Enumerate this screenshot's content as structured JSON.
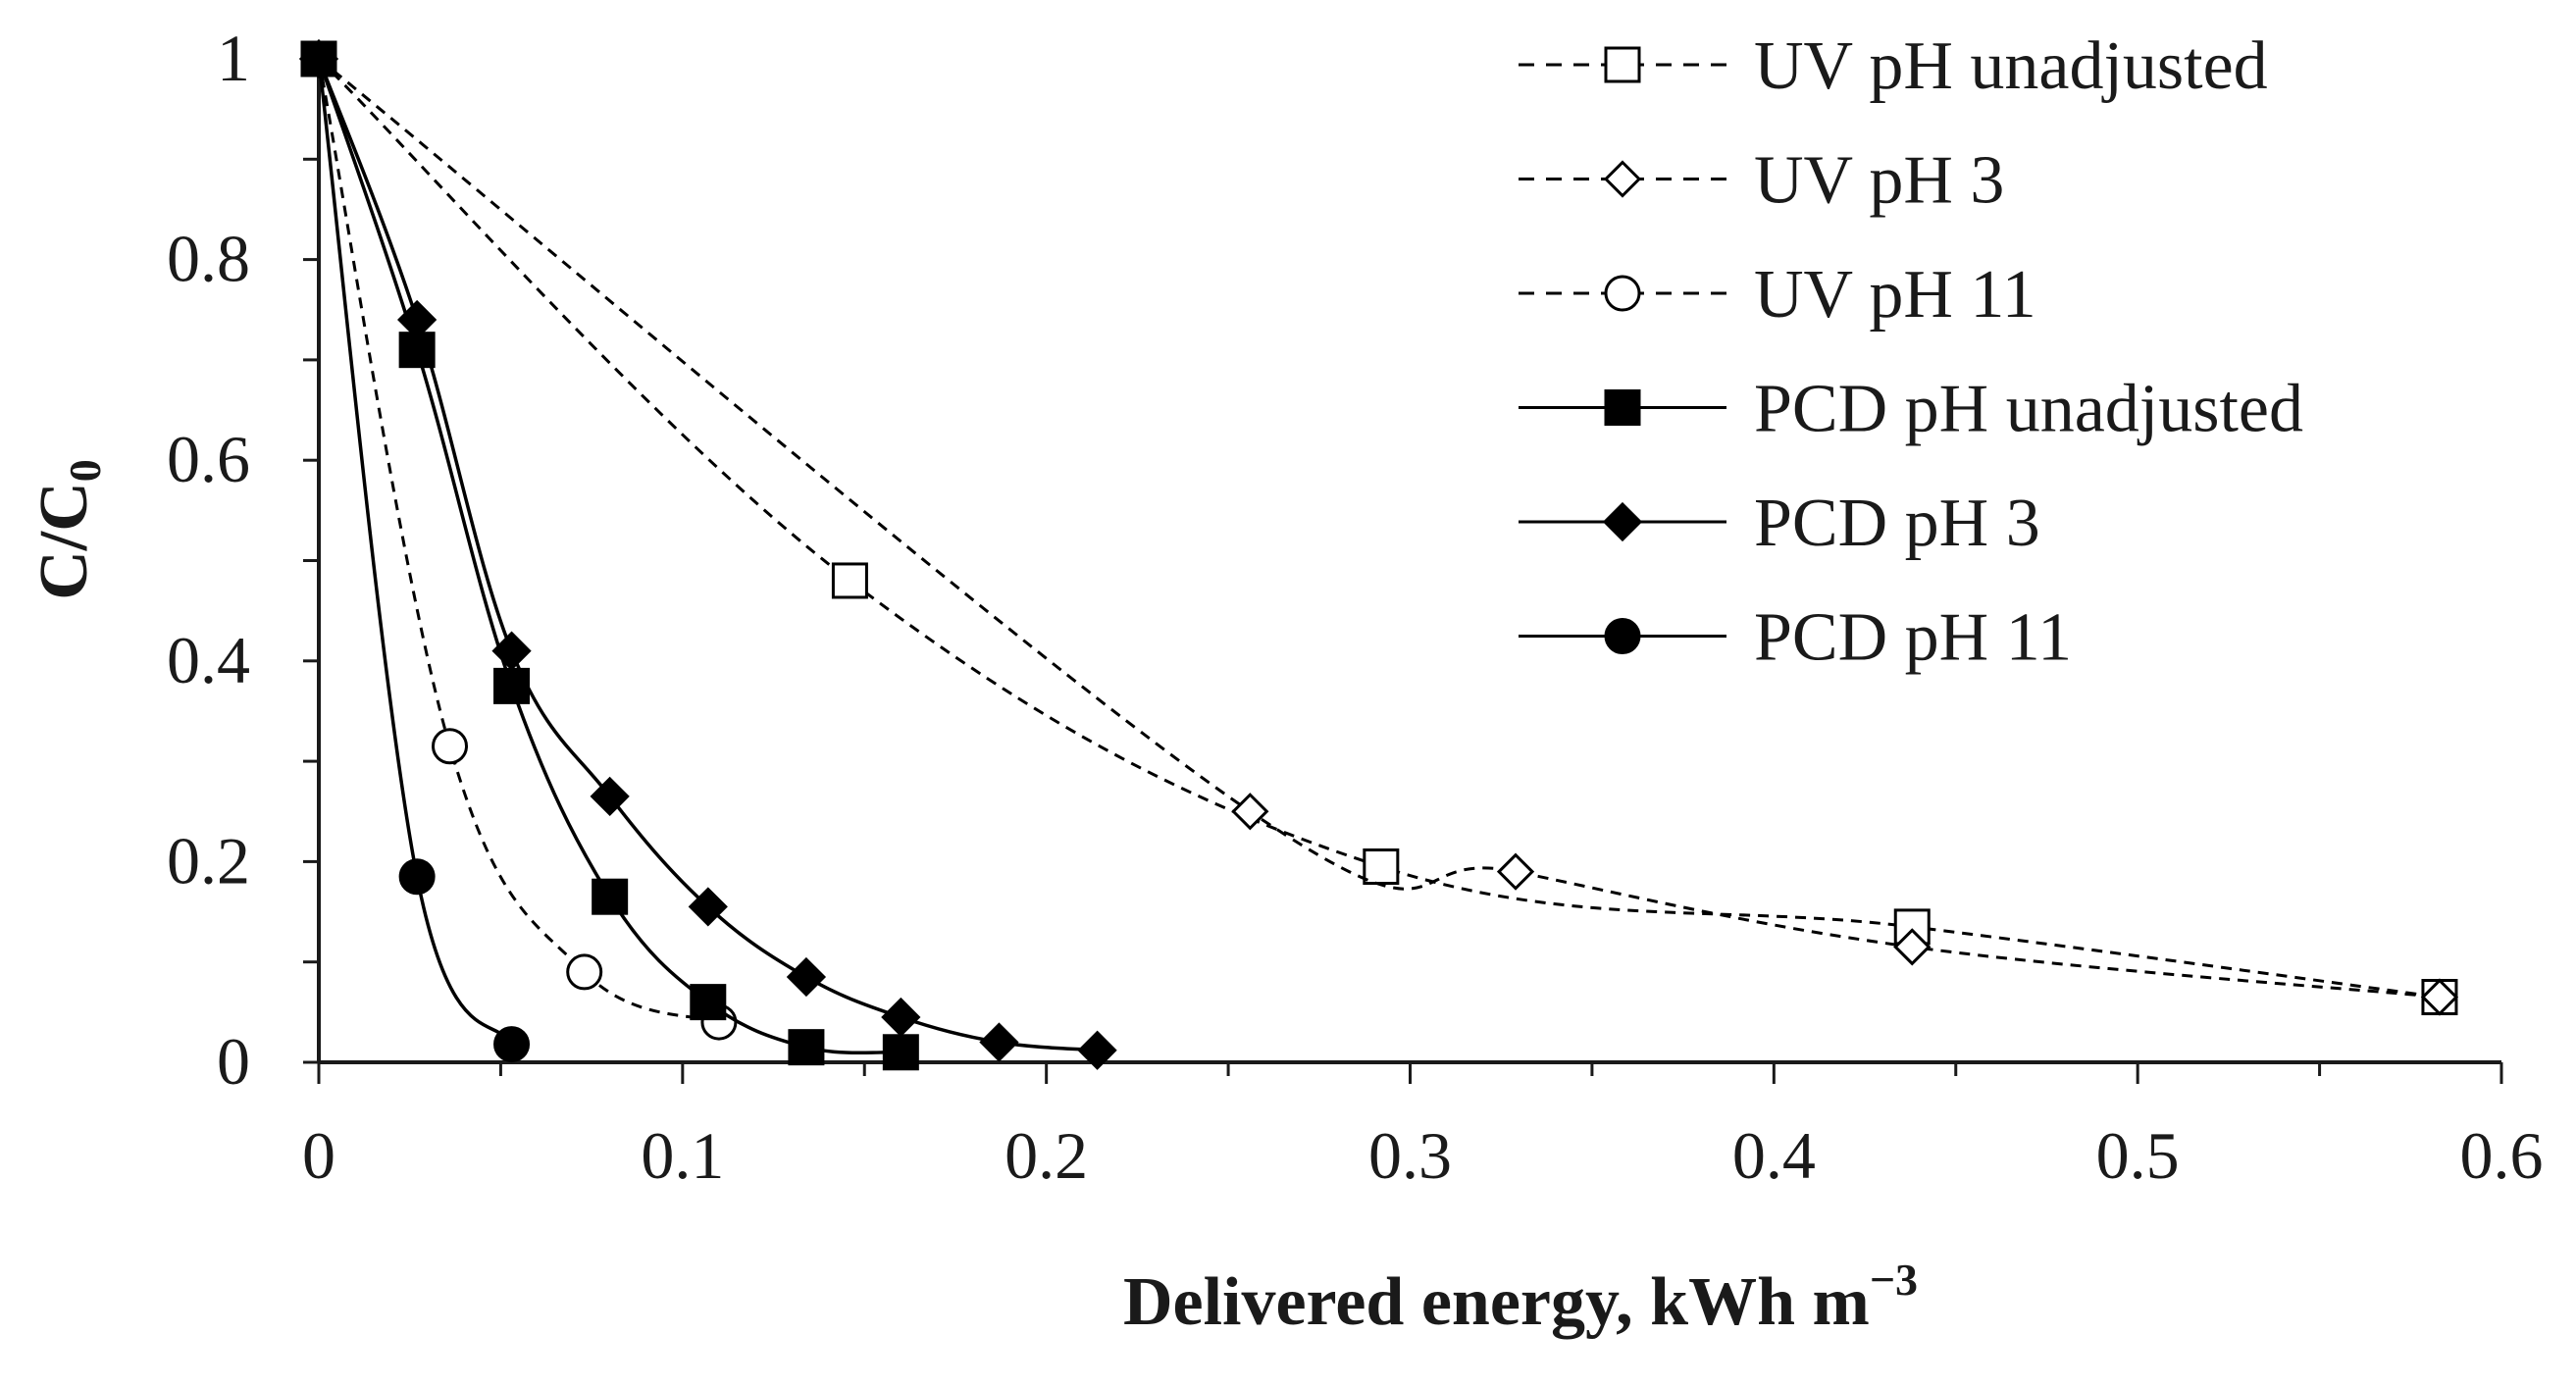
{
  "chart_data": {
    "type": "line",
    "title": "",
    "xlabel": "Delivered energy, kWh m",
    "xlabel_superscript": "−3",
    "ylabel": "C/C",
    "ylabel_subscript": "0",
    "xlim": [
      0,
      0.6
    ],
    "ylim": [
      0,
      1
    ],
    "xticks": [
      "0",
      "0.1",
      "0.2",
      "0.3",
      "0.4",
      "0.5",
      "0.6"
    ],
    "yticks": [
      "0",
      "0.2",
      "0.4",
      "0.6",
      "0.8",
      "1"
    ],
    "grid": false,
    "legend_position": "top-right",
    "series": [
      {
        "name": "UV pH unadjusted",
        "line": "dashed",
        "marker": "square",
        "filled": false,
        "x": [
          0,
          0.146,
          0.292,
          0.438,
          0.583
        ],
        "y": [
          1,
          0.48,
          0.195,
          0.135,
          0.065
        ]
      },
      {
        "name": "UV pH 3",
        "line": "dashed",
        "marker": "diamond",
        "filled": false,
        "x": [
          0,
          0.256,
          0.329,
          0.438,
          0.583
        ],
        "y": [
          1,
          0.25,
          0.19,
          0.115,
          0.065
        ]
      },
      {
        "name": "UV pH 11",
        "line": "dashed",
        "marker": "circle",
        "filled": false,
        "x": [
          0,
          0.036,
          0.073,
          0.11
        ],
        "y": [
          1,
          0.315,
          0.09,
          0.04
        ]
      },
      {
        "name": "PCD pH unadjusted",
        "line": "solid",
        "marker": "square",
        "filled": true,
        "x": [
          0,
          0.027,
          0.053,
          0.08,
          0.107,
          0.134,
          0.16
        ],
        "y": [
          1,
          0.71,
          0.375,
          0.165,
          0.06,
          0.015,
          0.01
        ]
      },
      {
        "name": "PCD pH 3",
        "line": "solid",
        "marker": "diamond",
        "filled": true,
        "x": [
          0,
          0.027,
          0.053,
          0.08,
          0.107,
          0.134,
          0.16,
          0.187,
          0.214
        ],
        "y": [
          1,
          0.74,
          0.41,
          0.265,
          0.155,
          0.085,
          0.045,
          0.02,
          0.012
        ]
      },
      {
        "name": "PCD pH 11",
        "line": "solid",
        "marker": "circle",
        "filled": true,
        "x": [
          0,
          0.027,
          0.053
        ],
        "y": [
          1,
          0.185,
          0.018
        ]
      }
    ]
  }
}
